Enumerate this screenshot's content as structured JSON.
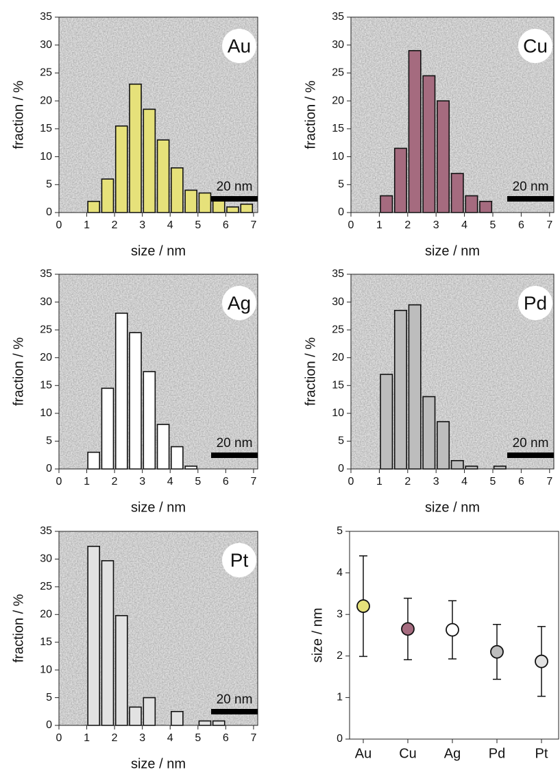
{
  "chart_data": [
    {
      "type": "histogram",
      "annotation": "Au",
      "scale_bar": "20 nm",
      "xlabel": "size / nm",
      "ylabel": "fraction / %",
      "color": "#e6e17a",
      "bins": [
        1,
        1.5,
        2,
        2.5,
        3,
        3.5,
        4,
        4.5,
        5,
        5.5,
        6,
        6.5,
        7
      ],
      "values": [
        2,
        6,
        15.5,
        23,
        18.5,
        13,
        8,
        4,
        3.5,
        2.5,
        1,
        1.5
      ],
      "xlim": [
        0,
        7.15
      ],
      "xticks": [
        0,
        1,
        2,
        3,
        4,
        5,
        6,
        7
      ],
      "ylim": [
        0,
        35
      ],
      "yticks": [
        0,
        5,
        10,
        15,
        20,
        25,
        30,
        35
      ]
    },
    {
      "type": "histogram",
      "annotation": "Cu",
      "scale_bar": "20 nm",
      "xlabel": "size / nm",
      "ylabel": "fraction / %",
      "color": "#a56b7f",
      "bins": [
        1,
        1.5,
        2,
        2.5,
        3,
        3.5,
        4,
        4.5,
        5
      ],
      "values": [
        3,
        11.5,
        29,
        24.5,
        20,
        7,
        3,
        2
      ],
      "xlim": [
        0,
        7.15
      ],
      "xticks": [
        0,
        1,
        2,
        3,
        4,
        5,
        6,
        7
      ],
      "ylim": [
        0,
        35
      ],
      "yticks": [
        0,
        5,
        10,
        15,
        20,
        25,
        30,
        35
      ]
    },
    {
      "type": "histogram",
      "annotation": "Ag",
      "scale_bar": "20 nm",
      "xlabel": "size / nm",
      "ylabel": "fraction / %",
      "color": "#ffffff",
      "bins": [
        1,
        1.5,
        2,
        2.5,
        3,
        3.5,
        4,
        4.5,
        5
      ],
      "values": [
        3,
        14.5,
        28,
        24.5,
        17.5,
        8,
        4,
        0.5
      ],
      "xlim": [
        0,
        7.15
      ],
      "xticks": [
        0,
        1,
        2,
        3,
        4,
        5,
        6,
        7
      ],
      "ylim": [
        0,
        35
      ],
      "yticks": [
        0,
        5,
        10,
        15,
        20,
        25,
        30,
        35
      ]
    },
    {
      "type": "histogram",
      "annotation": "Pd",
      "scale_bar": "20 nm",
      "xlabel": "size / nm",
      "ylabel": "fraction / %",
      "color": "#bdbdbd",
      "bins": [
        1,
        1.5,
        2,
        2.5,
        3,
        3.5,
        4,
        4.5,
        5,
        5.5
      ],
      "values": [
        17,
        28.5,
        29.5,
        13,
        8.5,
        1.5,
        0.5,
        0,
        0.5
      ],
      "xlim": [
        0,
        7.15
      ],
      "xticks": [
        0,
        1,
        2,
        3,
        4,
        5,
        6,
        7
      ],
      "ylim": [
        0,
        35
      ],
      "yticks": [
        0,
        5,
        10,
        15,
        20,
        25,
        30,
        35
      ]
    },
    {
      "type": "histogram",
      "annotation": "Pt",
      "scale_bar": "20 nm",
      "xlabel": "size / nm",
      "ylabel": "fraction / %",
      "color": "#e2e2e2",
      "bins": [
        1,
        1.5,
        2,
        2.5,
        3,
        3.5,
        4,
        4.5,
        5,
        5.5,
        6
      ],
      "values": [
        32.3,
        29.7,
        19.8,
        3.3,
        5,
        0,
        2.5,
        0,
        0.8,
        0.8
      ],
      "xlim": [
        0,
        7.15
      ],
      "xticks": [
        0,
        1,
        2,
        3,
        4,
        5,
        6,
        7
      ],
      "ylim": [
        0,
        35
      ],
      "yticks": [
        0,
        5,
        10,
        15,
        20,
        25,
        30,
        35
      ]
    },
    {
      "type": "errorbar",
      "ylabel": "size / nm",
      "categories": [
        "Au",
        "Cu",
        "Ag",
        "Pd",
        "Pt"
      ],
      "values": [
        3.2,
        2.65,
        2.63,
        2.1,
        1.87
      ],
      "errors": [
        1.21,
        0.74,
        0.7,
        0.66,
        0.84
      ],
      "colors": [
        "#e6e17a",
        "#a56b7f",
        "#ffffff",
        "#bdbdbd",
        "#e2e2e2"
      ],
      "ylim": [
        0,
        5
      ],
      "yticks": [
        0,
        1,
        2,
        3,
        4,
        5
      ]
    }
  ]
}
